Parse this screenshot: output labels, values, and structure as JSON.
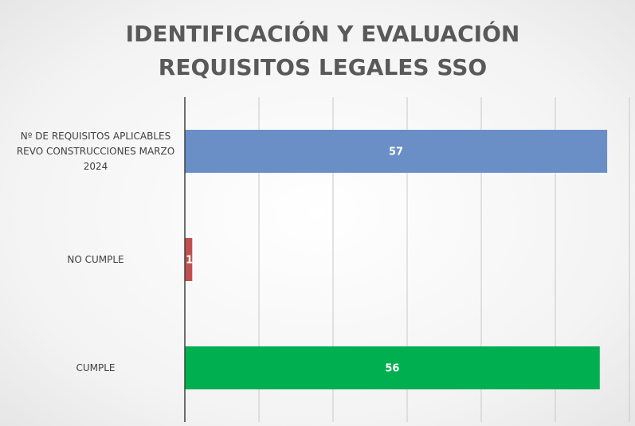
{
  "chart_data": {
    "type": "barh",
    "title": "IDENTIFICACIÓN Y EVALUACIÓN REQUISITOS LEGALES SSO",
    "categories": [
      "Nº DE REQUISITOS APLICABLES REVO CONSTRUCCIONES MARZO 2024",
      "NO CUMPLE",
      "CUMPLE"
    ],
    "values": [
      57,
      1,
      56
    ],
    "colors": [
      "#6a8fc7",
      "#c0504d",
      "#00b050"
    ],
    "xlim": [
      0,
      60
    ],
    "xticks": [
      0,
      10,
      20,
      30,
      40,
      50,
      60
    ],
    "grid": true
  }
}
